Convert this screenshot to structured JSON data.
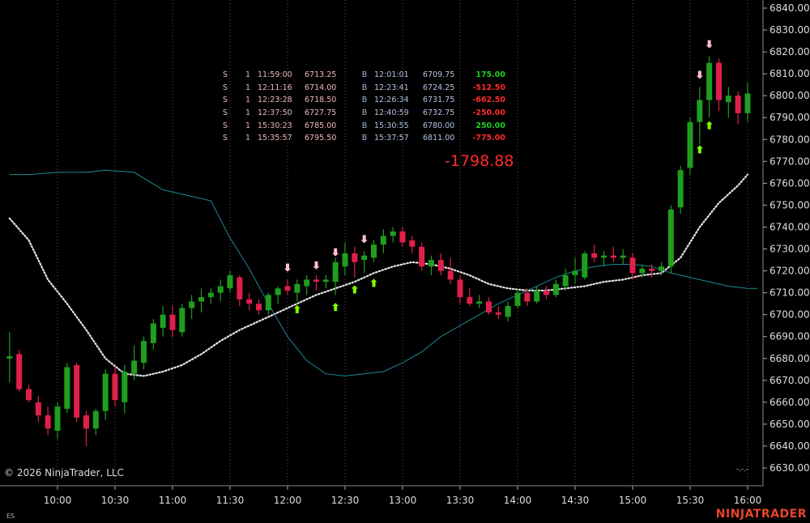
{
  "chart_data": {
    "type": "candlestick",
    "symbol": "ES",
    "yaxis": {
      "ticks": [
        6630,
        6640,
        6650,
        6660,
        6670,
        6680,
        6690,
        6700,
        6710,
        6720,
        6730,
        6740,
        6750,
        6760,
        6770,
        6780,
        6790,
        6800,
        6810,
        6820,
        6830,
        6840
      ],
      "tick_labels": [
        "6630.00",
        "6640.00",
        "6650.00",
        "6660.00",
        "6670.00",
        "6680.00",
        "6690.00",
        "6700.00",
        "6710.00",
        "6720.00",
        "6730.00",
        "6740.00",
        "6750.00",
        "6760.00",
        "6770.00",
        "6780.00",
        "6790.00",
        "6800.00",
        "6810.00",
        "6820.00",
        "6830.00",
        "6840.00"
      ],
      "ylim": [
        6625,
        6844
      ]
    },
    "xaxis": {
      "tick_labels": [
        "10:00",
        "10:30",
        "11:00",
        "11:30",
        "12:00",
        "12:30",
        "13:00",
        "13:30",
        "14:00",
        "14:30",
        "15:00",
        "15:30",
        "16:00"
      ],
      "xlim_minutes": [
        "09:35",
        "16:05"
      ]
    },
    "grid": "vertical-dotted",
    "candles": [
      {
        "t": "09:35",
        "o": 6680,
        "h": 6692,
        "l": 6669,
        "c": 6681
      },
      {
        "t": "09:40",
        "o": 6682,
        "h": 6684,
        "l": 6665,
        "c": 6666
      },
      {
        "t": "09:45",
        "o": 6666,
        "h": 6668,
        "l": 6660,
        "c": 6661
      },
      {
        "t": "09:50",
        "o": 6660,
        "h": 6663,
        "l": 6651,
        "c": 6654
      },
      {
        "t": "09:55",
        "o": 6654,
        "h": 6658,
        "l": 6645,
        "c": 6648
      },
      {
        "t": "10:00",
        "o": 6647,
        "h": 6660,
        "l": 6643,
        "c": 6658
      },
      {
        "t": "10:05",
        "o": 6657,
        "h": 6678,
        "l": 6655,
        "c": 6676
      },
      {
        "t": "10:10",
        "o": 6677,
        "h": 6678,
        "l": 6651,
        "c": 6653
      },
      {
        "t": "10:15",
        "o": 6654,
        "h": 6656,
        "l": 6640,
        "c": 6648
      },
      {
        "t": "10:20",
        "o": 6648,
        "h": 6657,
        "l": 6645,
        "c": 6656
      },
      {
        "t": "10:25",
        "o": 6656,
        "h": 6675,
        "l": 6652,
        "c": 6673
      },
      {
        "t": "10:30",
        "o": 6673,
        "h": 6676,
        "l": 6658,
        "c": 6661
      },
      {
        "t": "10:35",
        "o": 6660,
        "h": 6677,
        "l": 6655,
        "c": 6674
      },
      {
        "t": "10:40",
        "o": 6673,
        "h": 6686,
        "l": 6670,
        "c": 6679
      },
      {
        "t": "10:45",
        "o": 6678,
        "h": 6690,
        "l": 6675,
        "c": 6688
      },
      {
        "t": "10:50",
        "o": 6687,
        "h": 6698,
        "l": 6684,
        "c": 6696
      },
      {
        "t": "10:55",
        "o": 6694,
        "h": 6704,
        "l": 6690,
        "c": 6700
      },
      {
        "t": "11:00",
        "o": 6700,
        "h": 6704,
        "l": 6690,
        "c": 6693
      },
      {
        "t": "11:05",
        "o": 6692,
        "h": 6705,
        "l": 6690,
        "c": 6703
      },
      {
        "t": "11:10",
        "o": 6703,
        "h": 6709,
        "l": 6698,
        "c": 6706
      },
      {
        "t": "11:15",
        "o": 6706,
        "h": 6712,
        "l": 6701,
        "c": 6708
      },
      {
        "t": "11:20",
        "o": 6708,
        "h": 6712,
        "l": 6705,
        "c": 6710
      },
      {
        "t": "11:25",
        "o": 6710,
        "h": 6716,
        "l": 6706,
        "c": 6713
      },
      {
        "t": "11:30",
        "o": 6712,
        "h": 6720,
        "l": 6710,
        "c": 6718
      },
      {
        "t": "11:35",
        "o": 6717,
        "h": 6718,
        "l": 6704,
        "c": 6707
      },
      {
        "t": "11:40",
        "o": 6707,
        "h": 6710,
        "l": 6702,
        "c": 6705
      },
      {
        "t": "11:45",
        "o": 6705,
        "h": 6707,
        "l": 6700,
        "c": 6702
      },
      {
        "t": "11:50",
        "o": 6702,
        "h": 6710,
        "l": 6700,
        "c": 6709
      },
      {
        "t": "11:55",
        "o": 6709,
        "h": 6713,
        "l": 6705,
        "c": 6712
      },
      {
        "t": "12:00",
        "o": 6713,
        "h": 6716,
        "l": 6709,
        "c": 6711
      },
      {
        "t": "12:05",
        "o": 6710,
        "h": 6716,
        "l": 6706,
        "c": 6714
      },
      {
        "t": "12:10",
        "o": 6713,
        "h": 6718,
        "l": 6709,
        "c": 6716
      },
      {
        "t": "12:15",
        "o": 6716,
        "h": 6718,
        "l": 6711,
        "c": 6715
      },
      {
        "t": "12:20",
        "o": 6715,
        "h": 6718,
        "l": 6712,
        "c": 6716
      },
      {
        "t": "12:25",
        "o": 6715,
        "h": 6726,
        "l": 6709,
        "c": 6724
      },
      {
        "t": "12:30",
        "o": 6722,
        "h": 6733,
        "l": 6718,
        "c": 6728
      },
      {
        "t": "12:35",
        "o": 6728,
        "h": 6731,
        "l": 6717,
        "c": 6724
      },
      {
        "t": "12:40",
        "o": 6725,
        "h": 6729,
        "l": 6719,
        "c": 6727
      },
      {
        "t": "12:45",
        "o": 6726,
        "h": 6734,
        "l": 6724,
        "c": 6732
      },
      {
        "t": "12:50",
        "o": 6732,
        "h": 6739,
        "l": 6728,
        "c": 6736
      },
      {
        "t": "12:55",
        "o": 6736,
        "h": 6740,
        "l": 6733,
        "c": 6738
      },
      {
        "t": "13:00",
        "o": 6738,
        "h": 6740,
        "l": 6731,
        "c": 6733
      },
      {
        "t": "13:05",
        "o": 6734,
        "h": 6736,
        "l": 6728,
        "c": 6731
      },
      {
        "t": "13:10",
        "o": 6731,
        "h": 6733,
        "l": 6720,
        "c": 6722
      },
      {
        "t": "13:15",
        "o": 6722,
        "h": 6727,
        "l": 6718,
        "c": 6725
      },
      {
        "t": "13:20",
        "o": 6725,
        "h": 6728,
        "l": 6718,
        "c": 6720
      },
      {
        "t": "13:25",
        "o": 6720,
        "h": 6726,
        "l": 6714,
        "c": 6716
      },
      {
        "t": "13:30",
        "o": 6716,
        "h": 6718,
        "l": 6705,
        "c": 6708
      },
      {
        "t": "13:35",
        "o": 6708,
        "h": 6712,
        "l": 6704,
        "c": 6705
      },
      {
        "t": "13:40",
        "o": 6705,
        "h": 6709,
        "l": 6703,
        "c": 6706
      },
      {
        "t": "13:45",
        "o": 6706,
        "h": 6708,
        "l": 6700,
        "c": 6701
      },
      {
        "t": "13:50",
        "o": 6701,
        "h": 6704,
        "l": 6698,
        "c": 6700
      },
      {
        "t": "13:55",
        "o": 6699,
        "h": 6706,
        "l": 6697,
        "c": 6704
      },
      {
        "t": "14:00",
        "o": 6704,
        "h": 6712,
        "l": 6703,
        "c": 6710
      },
      {
        "t": "14:05",
        "o": 6710,
        "h": 6712,
        "l": 6704,
        "c": 6706
      },
      {
        "t": "14:10",
        "o": 6706,
        "h": 6713,
        "l": 6705,
        "c": 6711
      },
      {
        "t": "14:15",
        "o": 6711,
        "h": 6713,
        "l": 6707,
        "c": 6709
      },
      {
        "t": "14:20",
        "o": 6709,
        "h": 6716,
        "l": 6708,
        "c": 6714
      },
      {
        "t": "14:25",
        "o": 6713,
        "h": 6721,
        "l": 6711,
        "c": 6718
      },
      {
        "t": "14:30",
        "o": 6718,
        "h": 6726,
        "l": 6714,
        "c": 6720
      },
      {
        "t": "14:35",
        "o": 6717,
        "h": 6729,
        "l": 6716,
        "c": 6728
      },
      {
        "t": "14:40",
        "o": 6728,
        "h": 6732,
        "l": 6724,
        "c": 6726
      },
      {
        "t": "14:45",
        "o": 6726,
        "h": 6729,
        "l": 6722,
        "c": 6727
      },
      {
        "t": "14:50",
        "o": 6727,
        "h": 6731,
        "l": 6724,
        "c": 6726
      },
      {
        "t": "14:55",
        "o": 6726,
        "h": 6730,
        "l": 6723,
        "c": 6727
      },
      {
        "t": "15:00",
        "o": 6726,
        "h": 6728,
        "l": 6716,
        "c": 6719
      },
      {
        "t": "15:05",
        "o": 6719,
        "h": 6723,
        "l": 6717,
        "c": 6721
      },
      {
        "t": "15:10",
        "o": 6721,
        "h": 6723,
        "l": 6717,
        "c": 6720
      },
      {
        "t": "15:15",
        "o": 6720,
        "h": 6724,
        "l": 6718,
        "c": 6722
      },
      {
        "t": "15:20",
        "o": 6722,
        "h": 6750,
        "l": 6719,
        "c": 6748
      },
      {
        "t": "15:25",
        "o": 6749,
        "h": 6768,
        "l": 6746,
        "c": 6766
      },
      {
        "t": "15:30",
        "o": 6767,
        "h": 6790,
        "l": 6764,
        "c": 6788
      },
      {
        "t": "15:35",
        "o": 6788,
        "h": 6804,
        "l": 6778,
        "c": 6798
      },
      {
        "t": "15:40",
        "o": 6798,
        "h": 6818,
        "l": 6790,
        "c": 6815
      },
      {
        "t": "15:45",
        "o": 6815,
        "h": 6817,
        "l": 6793,
        "c": 6798
      },
      {
        "t": "15:50",
        "o": 6797,
        "h": 6804,
        "l": 6790,
        "c": 6800
      },
      {
        "t": "15:55",
        "o": 6800,
        "h": 6802,
        "l": 6787,
        "c": 6792
      },
      {
        "t": "16:00",
        "o": 6792,
        "h": 6806,
        "l": 6788,
        "c": 6801
      }
    ],
    "series": [
      {
        "name": "",
        "style": "dotted",
        "color": "#e6e6e6",
        "points": [
          [
            "09:35",
            6744
          ],
          [
            "09:45",
            6734
          ],
          [
            "09:55",
            6716
          ],
          [
            "10:05",
            6705
          ],
          [
            "10:15",
            6693
          ],
          [
            "10:25",
            6680
          ],
          [
            "10:35",
            6673
          ],
          [
            "10:45",
            6672
          ],
          [
            "10:55",
            6674
          ],
          [
            "11:05",
            6677
          ],
          [
            "11:15",
            6682
          ],
          [
            "11:25",
            6688
          ],
          [
            "11:35",
            6693
          ],
          [
            "11:45",
            6697
          ],
          [
            "11:55",
            6701
          ],
          [
            "12:05",
            6705
          ],
          [
            "12:15",
            6709
          ],
          [
            "12:25",
            6712
          ],
          [
            "12:35",
            6715
          ],
          [
            "12:45",
            6719
          ],
          [
            "12:55",
            6722
          ],
          [
            "13:05",
            6724
          ],
          [
            "13:15",
            6723
          ],
          [
            "13:25",
            6721
          ],
          [
            "13:35",
            6718
          ],
          [
            "13:45",
            6714
          ],
          [
            "13:55",
            6712
          ],
          [
            "14:05",
            6711
          ],
          [
            "14:15",
            6711
          ],
          [
            "14:25",
            6712
          ],
          [
            "14:35",
            6713
          ],
          [
            "14:45",
            6715
          ],
          [
            "14:55",
            6716
          ],
          [
            "15:05",
            6718
          ],
          [
            "15:15",
            6719
          ],
          [
            "15:25",
            6726
          ],
          [
            "15:35",
            6740
          ],
          [
            "15:45",
            6751
          ],
          [
            "15:55",
            6759
          ],
          [
            "16:00",
            6764
          ]
        ]
      },
      {
        "name": "",
        "style": "solid",
        "color": "#1a8a94",
        "points": [
          [
            "09:35",
            6764
          ],
          [
            "09:45",
            6764
          ],
          [
            "10:00",
            6765
          ],
          [
            "10:15",
            6765
          ],
          [
            "10:25",
            6766
          ],
          [
            "10:40",
            6765
          ],
          [
            "10:55",
            6757
          ],
          [
            "11:10",
            6754
          ],
          [
            "11:20",
            6752
          ],
          [
            "11:30",
            6735
          ],
          [
            "11:40",
            6721
          ],
          [
            "11:50",
            6705
          ],
          [
            "12:00",
            6690
          ],
          [
            "12:10",
            6679
          ],
          [
            "12:20",
            6673
          ],
          [
            "12:30",
            6672
          ],
          [
            "12:40",
            6673
          ],
          [
            "12:50",
            6674
          ],
          [
            "13:00",
            6678
          ],
          [
            "13:10",
            6683
          ],
          [
            "13:20",
            6690
          ],
          [
            "13:30",
            6695
          ],
          [
            "13:40",
            6700
          ],
          [
            "13:50",
            6705
          ],
          [
            "14:00",
            6709
          ],
          [
            "14:10",
            6713
          ],
          [
            "14:20",
            6717
          ],
          [
            "14:30",
            6720
          ],
          [
            "14:40",
            6722
          ],
          [
            "14:50",
            6723
          ],
          [
            "15:00",
            6723
          ],
          [
            "15:10",
            6722
          ],
          [
            "15:20",
            6719
          ],
          [
            "15:30",
            6717
          ],
          [
            "15:40",
            6715
          ],
          [
            "15:50",
            6713
          ],
          [
            "16:00",
            6712
          ],
          [
            "16:05",
            6712
          ]
        ]
      }
    ],
    "markers": [
      {
        "t": "12:00",
        "price": 6720,
        "kind": "down-arrow",
        "color": "#ffc0cc"
      },
      {
        "t": "12:05",
        "price": 6704,
        "kind": "up-arrow",
        "color": "#7fff00"
      },
      {
        "t": "12:15",
        "price": 6721,
        "kind": "down-arrow",
        "color": "#ffc0cc"
      },
      {
        "t": "12:25",
        "price": 6705,
        "kind": "up-arrow",
        "color": "#7fff00"
      },
      {
        "t": "12:25",
        "price": 6727,
        "kind": "down-arrow",
        "color": "#ffc0cc"
      },
      {
        "t": "12:35",
        "price": 6713,
        "kind": "up-arrow",
        "color": "#7fff00"
      },
      {
        "t": "12:40",
        "price": 6733,
        "kind": "down-arrow",
        "color": "#ffc0cc"
      },
      {
        "t": "12:45",
        "price": 6716,
        "kind": "up-arrow",
        "color": "#7fff00"
      },
      {
        "t": "15:35",
        "price": 6808,
        "kind": "down-arrow",
        "color": "#ffc0cc"
      },
      {
        "t": "15:35",
        "price": 6777,
        "kind": "up-arrow",
        "color": "#7fff00"
      },
      {
        "t": "15:40",
        "price": 6822,
        "kind": "down-arrow",
        "color": "#ffc0cc"
      },
      {
        "t": "15:40",
        "price": 6788,
        "kind": "up-arrow",
        "color": "#7fff00"
      }
    ],
    "colors": {
      "up": "#1f9e1f",
      "down": "#e0204a",
      "background": "#000000",
      "grid": "#555555"
    }
  },
  "trades": [
    {
      "side": "S",
      "qty": "1",
      "entry_time": "11:59:00",
      "entry_price": "6713.25",
      "exit_side": "B",
      "exit_time": "12:01:01",
      "exit_price": "6709.75",
      "pnl": "175.00",
      "positive": true
    },
    {
      "side": "S",
      "qty": "1",
      "entry_time": "12:11:16",
      "entry_price": "6714.00",
      "exit_side": "B",
      "exit_time": "12:23:41",
      "exit_price": "6724.25",
      "pnl": "-512.50",
      "positive": false
    },
    {
      "side": "S",
      "qty": "1",
      "entry_time": "12:23:28",
      "entry_price": "6718.50",
      "exit_side": "B",
      "exit_time": "12:26:34",
      "exit_price": "6731.75",
      "pnl": "-662.50",
      "positive": false
    },
    {
      "side": "S",
      "qty": "1",
      "entry_time": "12:37:50",
      "entry_price": "6727.75",
      "exit_side": "B",
      "exit_time": "12:40:59",
      "exit_price": "6732.75",
      "pnl": "-250.00",
      "positive": false
    },
    {
      "side": "S",
      "qty": "1",
      "entry_time": "15:30:23",
      "entry_price": "6785.00",
      "exit_side": "B",
      "exit_time": "15:30:55",
      "exit_price": "6780.00",
      "pnl": "250.00",
      "positive": true
    },
    {
      "side": "S",
      "qty": "1",
      "entry_time": "15:35:57",
      "entry_price": "6795.50",
      "exit_side": "B",
      "exit_time": "15:37:57",
      "exit_price": "6811.00",
      "pnl": "-775.00",
      "positive": false
    }
  ],
  "total_pnl": "-1798.88",
  "copyright": "© 2026 NinjaTrader, LLC",
  "symbol": "ES",
  "brand": "NINJATRADER",
  "corner_mark": "-.-.-"
}
